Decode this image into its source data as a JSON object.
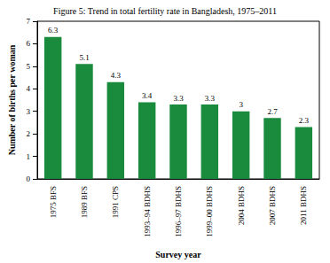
{
  "chart_data": {
    "type": "bar",
    "title": "Figure 5: Trend in total fertility rate in Bangladesh, 1975–2011",
    "x_label": "Survey year",
    "y_label": "Number of births per woman",
    "categories": [
      "1975 BFS",
      "1989 BFS",
      "1991 CPS",
      "1993–94 BDHS",
      "1996–97 BDHS",
      "1999–00 BDHS",
      "2004 BDHS",
      "2007 BDHS",
      "2011 BDHS"
    ],
    "values": [
      6.3,
      5.1,
      4.3,
      3.4,
      3.3,
      3.3,
      3,
      2.7,
      2.3
    ],
    "color": "#1a8a3c",
    "ylim": [
      0,
      7
    ],
    "yticks": [
      0,
      1,
      2,
      3,
      4,
      5,
      6,
      7
    ],
    "grid": false,
    "data_labels": true
  }
}
